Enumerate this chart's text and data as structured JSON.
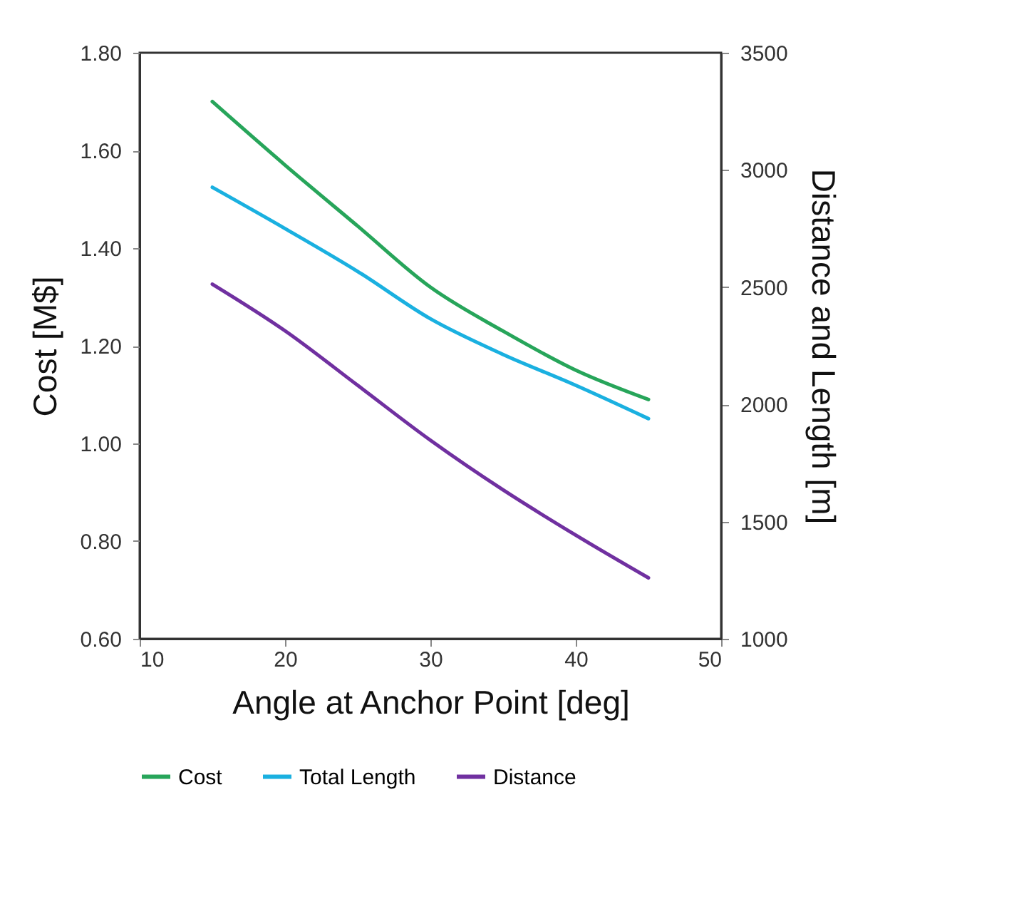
{
  "chart_data": {
    "type": "line",
    "xlabel": "Angle at Anchor Point [deg]",
    "ylabel": "Cost [M$]",
    "y2label": "Distance and Length [m]",
    "x": [
      15,
      20,
      25,
      30,
      35,
      40,
      45
    ],
    "series": [
      {
        "name": "Cost",
        "color": "#27a55a",
        "values": [
          1.7,
          1.57,
          1.445,
          1.32,
          1.23,
          1.15,
          1.09
        ]
      },
      {
        "name": "Total Length",
        "color": "#1ab0e0",
        "axis": "y2",
        "values": [
          2926,
          2750,
          2567,
          2365,
          2213,
          2081,
          1939
        ]
      },
      {
        "name": "Distance",
        "color": "#7030a0",
        "axis": "y2",
        "values": [
          2513,
          2314,
          2081,
          1847,
          1635,
          1442,
          1260
        ]
      }
    ],
    "xlim": [
      10,
      50
    ],
    "xticks": [
      10,
      20,
      30,
      40,
      50
    ],
    "ylim": [
      0.6,
      1.8
    ],
    "yticks": [
      {
        "value": 0.6,
        "label": "0.60"
      },
      {
        "value": 0.8,
        "label": "0.80"
      },
      {
        "value": 1.0,
        "label": "1.00"
      },
      {
        "value": 1.2,
        "label": "1.20"
      },
      {
        "value": 1.4,
        "label": "1.40"
      },
      {
        "value": 1.6,
        "label": "1.60"
      },
      {
        "value": 1.8,
        "label": "1.80"
      }
    ],
    "y2lim": [
      1000,
      3500
    ],
    "y2ticks": [
      1000,
      1500,
      2000,
      2500,
      3000,
      3500
    ],
    "grid": false,
    "legend": "bottom",
    "line_style": "solid",
    "marker": "none"
  }
}
